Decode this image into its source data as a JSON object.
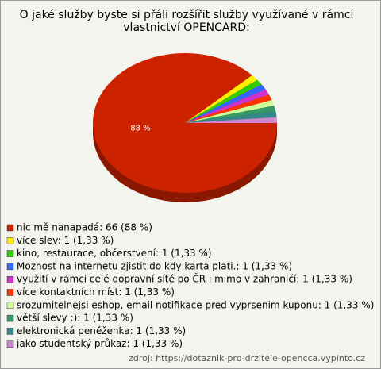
{
  "chart_data": {
    "type": "pie",
    "title": [
      "O jaké služby byste si přáli rozšířit služby využívané v rámci",
      "vlastnictví OPENCARD:"
    ],
    "categories": [
      "nic mě nanapadá",
      "více slev",
      "kino, restaurace, občerstvení",
      "Moznost na internetu zjistit do kdy karta plati.",
      "využití v rámci celé dopravní sítě po ČR i mimo v zahraničí",
      "více kontaktních míst",
      "srozumitelnejsi eshop, email notifikace pred vyprsenim kuponu",
      "větší slevy :)",
      "elektronická peněženka",
      "jako studentský průkaz"
    ],
    "legend": [
      "nic mě nanapadá: 66 (88 %)",
      "více slev: 1 (1,33 %)",
      "kino, restaurace, občerstvení: 1 (1,33 %)",
      "Moznost na internetu zjistit do kdy karta plati.: 1 (1,33 %)",
      "využití v rámci celé dopravní sítě po ČR i mimo v zahraničí: 1 (1,33 %)",
      "více kontaktních míst: 1 (1,33 %)",
      "srozumitelnejsi eshop, email notifikace pred vyprsenim kuponu: 1 (1,33 %)",
      "větší slevy :): 1 (1,33 %)",
      "elektronická peněženka: 1 (1,33 %)",
      "jako studentský průkaz: 1 (1,33 %)"
    ],
    "values": [
      88,
      1.33,
      1.33,
      1.33,
      1.33,
      1.33,
      1.33,
      1.33,
      1.33,
      1.33
    ],
    "value_labels": [
      "88 %",
      null,
      null,
      null,
      null,
      null,
      null,
      null,
      null,
      null
    ],
    "colors": [
      "#cc2200",
      "#ffee00",
      "#33cc00",
      "#3366ff",
      "#cc33cc",
      "#ff3300",
      "#ccff99",
      "#339966",
      "#338888",
      "#cc88cc"
    ],
    "source": "zdroj: https://dotaznik-pro-drzitele-opencca.vyplnto.cz"
  }
}
